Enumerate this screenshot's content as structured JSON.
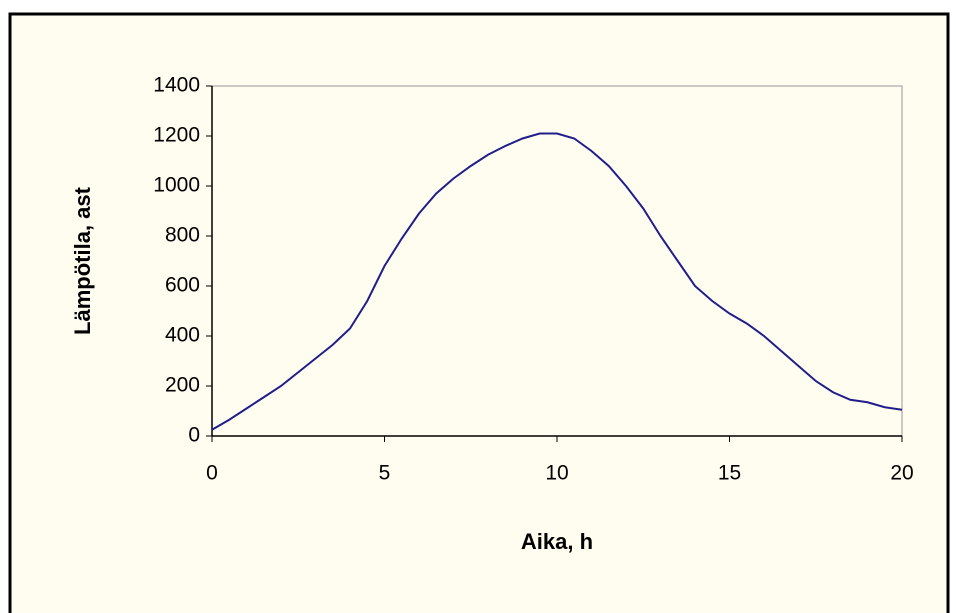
{
  "chart_data": {
    "type": "line",
    "xlabel": "Aika, h",
    "ylabel": "Lämpötila, ast",
    "x": [
      0,
      0.5,
      1,
      1.5,
      2,
      2.5,
      3,
      3.5,
      4,
      4.5,
      5,
      5.5,
      6,
      6.5,
      7,
      7.5,
      8,
      8.5,
      9,
      9.5,
      10,
      10.5,
      11,
      11.5,
      12,
      12.5,
      13,
      13.5,
      14,
      14.5,
      15,
      15.5,
      16,
      16.5,
      17,
      17.5,
      18,
      18.5,
      19,
      19.5,
      20
    ],
    "series": [
      {
        "color": "#1f1f8c",
        "values": [
          25,
          65,
          110,
          155,
          200,
          255,
          310,
          365,
          430,
          540,
          680,
          790,
          890,
          970,
          1030,
          1080,
          1125,
          1160,
          1190,
          1210,
          1210,
          1190,
          1140,
          1080,
          1000,
          910,
          800,
          700,
          600,
          540,
          490,
          450,
          400,
          340,
          280,
          220,
          175,
          145,
          135,
          115,
          105
        ]
      }
    ],
    "xlim": [
      0,
      20
    ],
    "xticks": [
      0,
      5,
      10,
      15,
      20
    ],
    "ylim": [
      0,
      1400
    ],
    "yticks": [
      0,
      200,
      400,
      600,
      800,
      1000,
      1200,
      1400
    ],
    "grid": false
  }
}
